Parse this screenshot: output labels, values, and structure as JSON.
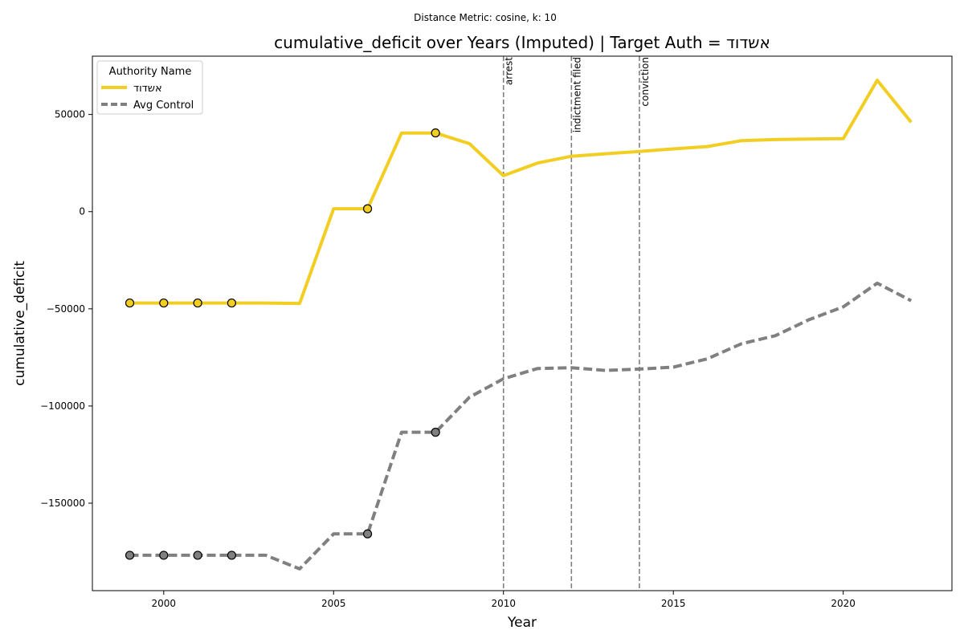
{
  "chart_data": {
    "type": "line",
    "suptitle": "Distance Metric: cosine, k: 10",
    "title": "cumulative_deficit over Years (Imputed) | Target Auth = אשדוד",
    "xlabel": "Year",
    "ylabel": "cumulative_deficit",
    "xlim": [
      1997.9,
      2023.2
    ],
    "ylim": [
      -195000,
      80000
    ],
    "xticks": [
      2000,
      2005,
      2010,
      2015,
      2020
    ],
    "xtick_labels": [
      "2000",
      "2005",
      "2010",
      "2015",
      "2020"
    ],
    "yticks": [
      -150000,
      -100000,
      -50000,
      0,
      50000
    ],
    "ytick_labels": [
      "−150000",
      "−100000",
      "−50000",
      "0",
      "50000"
    ],
    "grid": false,
    "legend": {
      "title": "Authority Name",
      "placement": "top-left"
    },
    "x": [
      1999,
      2000,
      2001,
      2002,
      2003,
      2004,
      2005,
      2006,
      2007,
      2008,
      2009,
      2010,
      2011,
      2012,
      2013,
      2014,
      2015,
      2016,
      2017,
      2018,
      2019,
      2020,
      2021,
      2022
    ],
    "series": [
      {
        "name": "אשדוד",
        "color": "#f2cd22",
        "dash": "solid",
        "values": [
          -47000,
          -47000,
          -47000,
          -47000,
          -47000,
          -47200,
          1500,
          1500,
          40500,
          40500,
          35000,
          18500,
          25000,
          28500,
          29800,
          31000,
          32300,
          33500,
          36500,
          37100,
          37400,
          37600,
          67600,
          46000
        ],
        "observed_x": [
          1999,
          2000,
          2001,
          2002,
          2006,
          2008
        ]
      },
      {
        "name": "Avg Control",
        "color": "#808080",
        "dash": "dashed",
        "values": [
          -176800,
          -176800,
          -176800,
          -176800,
          -176800,
          -183800,
          -165800,
          -165800,
          -113500,
          -113500,
          -95500,
          -86000,
          -80700,
          -80300,
          -81700,
          -81000,
          -80000,
          -75700,
          -68000,
          -63800,
          -55500,
          -49000,
          -36800,
          -45800
        ],
        "observed_x": [
          1999,
          2000,
          2001,
          2002,
          2006,
          2008
        ]
      }
    ],
    "events": [
      {
        "x": 2010,
        "label": "arrest"
      },
      {
        "x": 2012,
        "label": "indictment filed"
      },
      {
        "x": 2014,
        "label": "conviction"
      }
    ]
  }
}
